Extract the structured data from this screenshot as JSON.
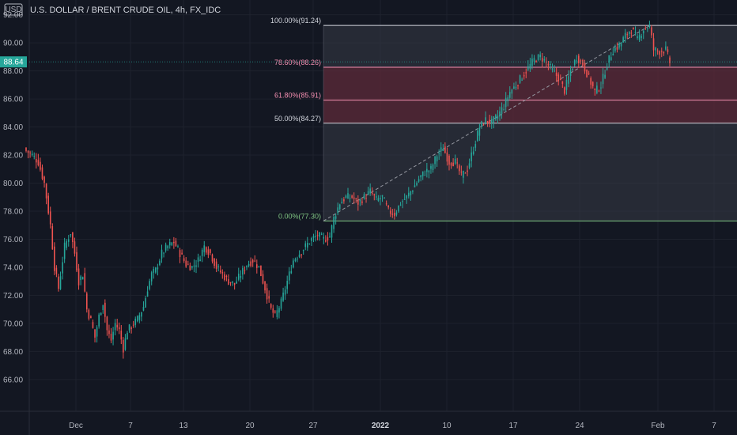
{
  "header": {
    "currency_badge": "USD",
    "symbol_title": "U.S. DOLLAR / BRENT CRUDE OIL, 4h, FX_IDC"
  },
  "price_badge": {
    "value": 88.64,
    "label": "88.64"
  },
  "colors": {
    "background": "#131722",
    "up": "#26a69a",
    "down": "#ef5350",
    "grid": "#1e222d",
    "axis_text": "#b2b5be",
    "fib_zone_grey": "#363a45",
    "fib_zone_red": "#5d2b3a",
    "fib_line_red": "#f48fb1",
    "fib_line_white": "#d1d4dc",
    "fib_line_green": "#81c784"
  },
  "chart_data": {
    "type": "candlestick",
    "y_axis": {
      "ylim": [
        64.3,
        92.6
      ],
      "ticks": [
        66.0,
        68.0,
        70.0,
        72.0,
        74.0,
        76.0,
        78.0,
        80.0,
        82.0,
        84.0,
        86.0,
        88.0,
        90.0,
        92.0
      ],
      "tick_labels": [
        "66.00",
        "68.00",
        "70.00",
        "72.00",
        "74.00",
        "76.00",
        "78.00",
        "80.00",
        "82.00",
        "84.00",
        "86.00",
        "88.00",
        "90.00",
        "92.00"
      ]
    },
    "x_axis": {
      "ticks": [
        {
          "label": "Dec",
          "bold": false
        },
        {
          "label": "7",
          "bold": false
        },
        {
          "label": "13",
          "bold": false
        },
        {
          "label": "20",
          "bold": false
        },
        {
          "label": "27",
          "bold": false
        },
        {
          "label": "2022",
          "bold": true
        },
        {
          "label": "10",
          "bold": false
        },
        {
          "label": "17",
          "bold": false
        },
        {
          "label": "24",
          "bold": false
        },
        {
          "label": "Feb",
          "bold": false
        },
        {
          "label": "7",
          "bold": false
        }
      ]
    },
    "fibonacci": {
      "levels": [
        {
          "label": "100.00%(91.24)",
          "price": 91.24,
          "tone": "white"
        },
        {
          "label": "78.60%(88.26)",
          "price": 88.26,
          "tone": "red"
        },
        {
          "label": "61.80%(85.91)",
          "price": 85.91,
          "tone": "red"
        },
        {
          "label": "50.00%(84.27)",
          "price": 84.27,
          "tone": "white"
        },
        {
          "label": "0.00%(77.30)",
          "price": 77.3,
          "tone": "green"
        }
      ]
    },
    "close_path": [
      [
        0,
        82.3
      ],
      [
        3,
        82.0
      ],
      [
        6,
        81.5
      ],
      [
        9,
        80.0
      ],
      [
        12,
        77.0
      ],
      [
        14,
        74.0
      ],
      [
        16,
        72.5
      ],
      [
        19,
        75.5
      ],
      [
        22,
        76.5
      ],
      [
        24,
        75.0
      ],
      [
        26,
        73.0
      ],
      [
        28,
        73.5
      ],
      [
        30,
        71.0
      ],
      [
        32,
        70.2
      ],
      [
        34,
        69.0
      ],
      [
        36,
        70.5
      ],
      [
        38,
        71.5
      ],
      [
        40,
        69.5
      ],
      [
        42,
        68.8
      ],
      [
        44,
        70.0
      ],
      [
        46,
        69.5
      ],
      [
        48,
        68.2
      ],
      [
        50,
        69.5
      ],
      [
        52,
        69.8
      ],
      [
        55,
        70.3
      ],
      [
        58,
        71.2
      ],
      [
        60,
        72.5
      ],
      [
        62,
        73.5
      ],
      [
        64,
        73.8
      ],
      [
        67,
        75.0
      ],
      [
        70,
        75.5
      ],
      [
        73,
        75.8
      ],
      [
        76,
        75.0
      ],
      [
        79,
        74.2
      ],
      [
        82,
        74.0
      ],
      [
        85,
        74.5
      ],
      [
        88,
        75.5
      ],
      [
        91,
        75.0
      ],
      [
        94,
        74.0
      ],
      [
        97,
        73.5
      ],
      [
        100,
        73.0
      ],
      [
        103,
        72.8
      ],
      [
        106,
        73.5
      ],
      [
        109,
        74.2
      ],
      [
        112,
        74.5
      ],
      [
        115,
        74.0
      ],
      [
        118,
        72.5
      ],
      [
        121,
        71.0
      ],
      [
        123,
        70.5
      ],
      [
        126,
        71.5
      ],
      [
        129,
        73.0
      ],
      [
        132,
        74.5
      ],
      [
        135,
        75.0
      ],
      [
        138,
        75.5
      ],
      [
        141,
        76.0
      ],
      [
        144,
        76.3
      ],
      [
        147,
        76.0
      ],
      [
        150,
        76.2
      ],
      [
        152,
        77.5
      ],
      [
        155,
        78.6
      ],
      [
        158,
        79.0
      ],
      [
        161,
        79.0
      ],
      [
        164,
        78.6
      ],
      [
        167,
        79.0
      ],
      [
        170,
        79.4
      ],
      [
        173,
        78.8
      ],
      [
        176,
        79.0
      ],
      [
        179,
        78.0
      ],
      [
        182,
        77.8
      ],
      [
        185,
        78.6
      ],
      [
        188,
        79.0
      ],
      [
        191,
        79.6
      ],
      [
        194,
        80.3
      ],
      [
        197,
        80.8
      ],
      [
        200,
        81.0
      ],
      [
        203,
        82.0
      ],
      [
        206,
        82.5
      ],
      [
        209,
        81.5
      ],
      [
        212,
        81.5
      ],
      [
        215,
        80.5
      ],
      [
        218,
        81.0
      ],
      [
        221,
        82.5
      ],
      [
        224,
        84.0
      ],
      [
        227,
        84.5
      ],
      [
        230,
        84.3
      ],
      [
        233,
        84.8
      ],
      [
        236,
        85.5
      ],
      [
        239,
        86.5
      ],
      [
        242,
        87.0
      ],
      [
        245,
        87.6
      ],
      [
        248,
        88.2
      ],
      [
        251,
        88.8
      ],
      [
        254,
        89.0
      ],
      [
        257,
        88.6
      ],
      [
        260,
        88.0
      ],
      [
        263,
        87.5
      ],
      [
        266,
        86.6
      ],
      [
        269,
        88.0
      ],
      [
        272,
        89.0
      ],
      [
        275,
        88.5
      ],
      [
        278,
        87.5
      ],
      [
        281,
        86.5
      ],
      [
        284,
        87.0
      ],
      [
        287,
        88.5
      ],
      [
        290,
        89.5
      ],
      [
        293,
        89.8
      ],
      [
        296,
        90.5
      ],
      [
        299,
        91.0
      ],
      [
        302,
        90.2
      ],
      [
        305,
        91.0
      ],
      [
        308,
        91.2
      ],
      [
        310,
        89.5
      ],
      [
        313,
        89.4
      ],
      [
        316,
        89.5
      ],
      [
        318,
        88.6
      ]
    ]
  }
}
